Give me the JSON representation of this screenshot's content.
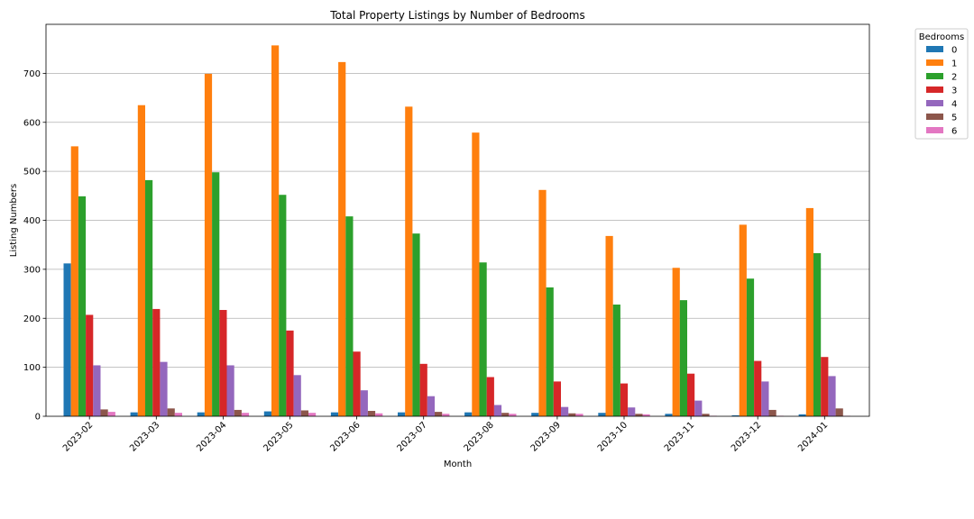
{
  "chart_data": {
    "type": "bar",
    "title": "Total Property Listings by Number of Bedrooms",
    "xlabel": "Month",
    "ylabel": "Listing Numbers",
    "ylim": [
      0,
      800
    ],
    "yticks": [
      0,
      100,
      200,
      300,
      400,
      500,
      600,
      700
    ],
    "grid": "y",
    "legend": {
      "title": "Bedrooms",
      "placement": "outside-top-right"
    },
    "categories": [
      "2023-02",
      "2023-03",
      "2023-04",
      "2023-05",
      "2023-06",
      "2023-07",
      "2023-08",
      "2023-09",
      "2023-10",
      "2023-11",
      "2023-12",
      "2024-01"
    ],
    "series": [
      {
        "name": "0",
        "color": "#1f77b4",
        "values": [
          312,
          8,
          8,
          10,
          8,
          8,
          8,
          7,
          7,
          5,
          2,
          4
        ]
      },
      {
        "name": "1",
        "color": "#ff7f0e",
        "values": [
          551,
          635,
          699,
          757,
          723,
          632,
          579,
          462,
          368,
          303,
          391,
          425
        ]
      },
      {
        "name": "2",
        "color": "#2ca02c",
        "values": [
          449,
          482,
          498,
          452,
          408,
          373,
          314,
          263,
          228,
          237,
          281,
          333
        ]
      },
      {
        "name": "3",
        "color": "#d62728",
        "values": [
          207,
          219,
          217,
          175,
          132,
          107,
          80,
          71,
          67,
          87,
          113,
          121
        ]
      },
      {
        "name": "4",
        "color": "#9467bd",
        "values": [
          104,
          111,
          104,
          84,
          53,
          41,
          23,
          19,
          18,
          32,
          71,
          82
        ]
      },
      {
        "name": "5",
        "color": "#8c564b",
        "values": [
          14,
          16,
          13,
          12,
          11,
          9,
          7,
          6,
          5,
          5,
          13,
          16
        ]
      },
      {
        "name": "6",
        "color": "#e377c2",
        "values": [
          9,
          7,
          7,
          7,
          6,
          5,
          5,
          5,
          4,
          1,
          1,
          1
        ]
      }
    ]
  }
}
